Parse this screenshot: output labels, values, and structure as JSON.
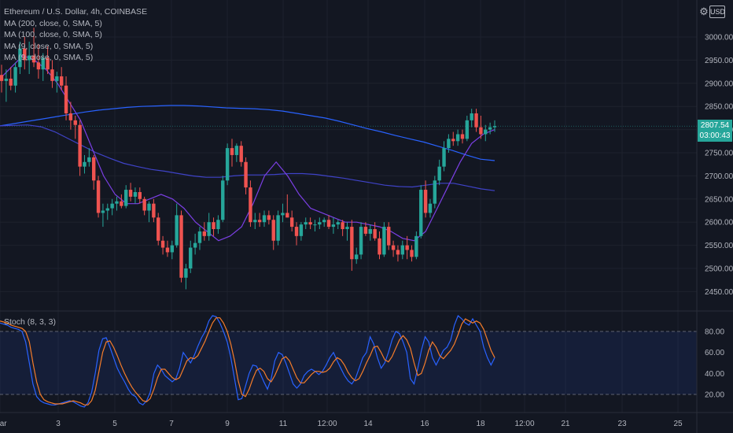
{
  "legend": {
    "title": "Ethereum / U.S. Dollar, 4h, COINBASE",
    "ma_lines": [
      "MA (200, close, 0, SMA, 5)",
      "MA (100, close, 0, SMA, 5)",
      "MA (9, close, 0, SMA, 5)",
      "MA (9, close, 0, SMA, 5)"
    ]
  },
  "currency": "USD",
  "settings_icon": "gear-icon",
  "price_badge": {
    "price": "2807.54",
    "countdown": "03:00:43"
  },
  "stoch_label": "Stoch (8, 3, 3)",
  "colors": {
    "up": "#26a69a",
    "down": "#ef5350",
    "ma200": "#2962ff",
    "ma100": "#3f43c8",
    "ma9": "#7b3fe4",
    "stoch_k": "#2962ff",
    "stoch_d": "#f57c2a"
  },
  "chart_data": [
    {
      "type": "candlestick",
      "title": "Ethereum / U.S. Dollar, 4h, COINBASE",
      "y_ticks": [
        2450,
        2500,
        2550,
        2600,
        2650,
        2700,
        2750,
        2800,
        2850,
        2900,
        2950,
        3000
      ],
      "ylim": [
        2420,
        3050
      ],
      "x_ticks": [
        "Mar",
        "3",
        "5",
        "7",
        "9",
        "11",
        "12:00",
        "14",
        "16",
        "18",
        "12:00",
        "21",
        "23",
        "25"
      ],
      "last_price": 2807.54,
      "candles": [
        {
          "o": 2918,
          "h": 2940,
          "l": 2880,
          "c": 2905
        },
        {
          "o": 2905,
          "h": 2930,
          "l": 2860,
          "c": 2910
        },
        {
          "o": 2910,
          "h": 2935,
          "l": 2885,
          "c": 2895
        },
        {
          "o": 2895,
          "h": 2945,
          "l": 2880,
          "c": 2935
        },
        {
          "o": 2935,
          "h": 2990,
          "l": 2920,
          "c": 2975
        },
        {
          "o": 2975,
          "h": 3000,
          "l": 2930,
          "c": 2950
        },
        {
          "o": 2950,
          "h": 2990,
          "l": 2920,
          "c": 2960
        },
        {
          "o": 2960,
          "h": 3020,
          "l": 2935,
          "c": 2945
        },
        {
          "o": 2945,
          "h": 2985,
          "l": 2910,
          "c": 2930
        },
        {
          "o": 2930,
          "h": 2965,
          "l": 2905,
          "c": 2955
        },
        {
          "o": 2955,
          "h": 2980,
          "l": 2920,
          "c": 2930
        },
        {
          "o": 2930,
          "h": 2950,
          "l": 2890,
          "c": 2905
        },
        {
          "o": 2905,
          "h": 2925,
          "l": 2880,
          "c": 2915
        },
        {
          "o": 2915,
          "h": 2935,
          "l": 2885,
          "c": 2895
        },
        {
          "o": 2895,
          "h": 2915,
          "l": 2820,
          "c": 2835
        },
        {
          "o": 2835,
          "h": 2860,
          "l": 2800,
          "c": 2820
        },
        {
          "o": 2820,
          "h": 2830,
          "l": 2780,
          "c": 2810
        },
        {
          "o": 2810,
          "h": 2820,
          "l": 2700,
          "c": 2720
        },
        {
          "o": 2720,
          "h": 2745,
          "l": 2705,
          "c": 2730
        },
        {
          "o": 2730,
          "h": 2760,
          "l": 2720,
          "c": 2740
        },
        {
          "o": 2740,
          "h": 2745,
          "l": 2670,
          "c": 2690
        },
        {
          "o": 2690,
          "h": 2700,
          "l": 2610,
          "c": 2620
        },
        {
          "o": 2620,
          "h": 2640,
          "l": 2590,
          "c": 2625
        },
        {
          "o": 2625,
          "h": 2640,
          "l": 2605,
          "c": 2630
        },
        {
          "o": 2630,
          "h": 2650,
          "l": 2615,
          "c": 2640
        },
        {
          "o": 2640,
          "h": 2655,
          "l": 2625,
          "c": 2645
        },
        {
          "o": 2645,
          "h": 2660,
          "l": 2630,
          "c": 2635
        },
        {
          "o": 2635,
          "h": 2680,
          "l": 2630,
          "c": 2670
        },
        {
          "o": 2670,
          "h": 2685,
          "l": 2645,
          "c": 2655
        },
        {
          "o": 2655,
          "h": 2675,
          "l": 2640,
          "c": 2665
        },
        {
          "o": 2665,
          "h": 2675,
          "l": 2640,
          "c": 2650
        },
        {
          "o": 2650,
          "h": 2655,
          "l": 2615,
          "c": 2625
        },
        {
          "o": 2625,
          "h": 2645,
          "l": 2600,
          "c": 2640
        },
        {
          "o": 2640,
          "h": 2650,
          "l": 2600,
          "c": 2610
        },
        {
          "o": 2610,
          "h": 2620,
          "l": 2550,
          "c": 2560
        },
        {
          "o": 2560,
          "h": 2570,
          "l": 2530,
          "c": 2545
        },
        {
          "o": 2545,
          "h": 2560,
          "l": 2525,
          "c": 2535
        },
        {
          "o": 2535,
          "h": 2560,
          "l": 2520,
          "c": 2550
        },
        {
          "o": 2550,
          "h": 2640,
          "l": 2545,
          "c": 2615
        },
        {
          "o": 2615,
          "h": 2625,
          "l": 2470,
          "c": 2480
        },
        {
          "o": 2480,
          "h": 2510,
          "l": 2455,
          "c": 2500
        },
        {
          "o": 2500,
          "h": 2560,
          "l": 2490,
          "c": 2545
        },
        {
          "o": 2545,
          "h": 2575,
          "l": 2530,
          "c": 2555
        },
        {
          "o": 2555,
          "h": 2590,
          "l": 2540,
          "c": 2580
        },
        {
          "o": 2580,
          "h": 2600,
          "l": 2560,
          "c": 2570
        },
        {
          "o": 2570,
          "h": 2620,
          "l": 2560,
          "c": 2600
        },
        {
          "o": 2600,
          "h": 2610,
          "l": 2570,
          "c": 2585
        },
        {
          "o": 2585,
          "h": 2615,
          "l": 2575,
          "c": 2605
        },
        {
          "o": 2605,
          "h": 2700,
          "l": 2600,
          "c": 2690
        },
        {
          "o": 2690,
          "h": 2770,
          "l": 2680,
          "c": 2760
        },
        {
          "o": 2760,
          "h": 2780,
          "l": 2720,
          "c": 2745
        },
        {
          "o": 2745,
          "h": 2770,
          "l": 2730,
          "c": 2765
        },
        {
          "o": 2765,
          "h": 2775,
          "l": 2720,
          "c": 2730
        },
        {
          "o": 2730,
          "h": 2740,
          "l": 2660,
          "c": 2675
        },
        {
          "o": 2675,
          "h": 2690,
          "l": 2590,
          "c": 2600
        },
        {
          "o": 2600,
          "h": 2620,
          "l": 2585,
          "c": 2605
        },
        {
          "o": 2605,
          "h": 2620,
          "l": 2590,
          "c": 2600
        },
        {
          "o": 2600,
          "h": 2625,
          "l": 2590,
          "c": 2615
        },
        {
          "o": 2615,
          "h": 2625,
          "l": 2595,
          "c": 2605
        },
        {
          "o": 2605,
          "h": 2615,
          "l": 2540,
          "c": 2560
        },
        {
          "o": 2560,
          "h": 2625,
          "l": 2550,
          "c": 2615
        },
        {
          "o": 2615,
          "h": 2640,
          "l": 2600,
          "c": 2620
        },
        {
          "o": 2620,
          "h": 2660,
          "l": 2610,
          "c": 2610
        },
        {
          "o": 2610,
          "h": 2625,
          "l": 2580,
          "c": 2590
        },
        {
          "o": 2590,
          "h": 2600,
          "l": 2550,
          "c": 2570
        },
        {
          "o": 2570,
          "h": 2600,
          "l": 2560,
          "c": 2595
        },
        {
          "o": 2595,
          "h": 2610,
          "l": 2585,
          "c": 2600
        },
        {
          "o": 2600,
          "h": 2610,
          "l": 2585,
          "c": 2595
        },
        {
          "o": 2595,
          "h": 2605,
          "l": 2580,
          "c": 2595
        },
        {
          "o": 2595,
          "h": 2610,
          "l": 2585,
          "c": 2600
        },
        {
          "o": 2600,
          "h": 2610,
          "l": 2590,
          "c": 2605
        },
        {
          "o": 2605,
          "h": 2615,
          "l": 2585,
          "c": 2590
        },
        {
          "o": 2590,
          "h": 2610,
          "l": 2575,
          "c": 2595
        },
        {
          "o": 2595,
          "h": 2605,
          "l": 2585,
          "c": 2600
        },
        {
          "o": 2600,
          "h": 2605,
          "l": 2570,
          "c": 2585
        },
        {
          "o": 2585,
          "h": 2600,
          "l": 2560,
          "c": 2590
        },
        {
          "o": 2590,
          "h": 2605,
          "l": 2495,
          "c": 2520
        },
        {
          "o": 2520,
          "h": 2545,
          "l": 2510,
          "c": 2530
        },
        {
          "o": 2530,
          "h": 2600,
          "l": 2520,
          "c": 2590
        },
        {
          "o": 2590,
          "h": 2600,
          "l": 2570,
          "c": 2575
        },
        {
          "o": 2575,
          "h": 2595,
          "l": 2560,
          "c": 2585
        },
        {
          "o": 2585,
          "h": 2600,
          "l": 2560,
          "c": 2565
        },
        {
          "o": 2565,
          "h": 2580,
          "l": 2520,
          "c": 2530
        },
        {
          "o": 2530,
          "h": 2600,
          "l": 2525,
          "c": 2590
        },
        {
          "o": 2590,
          "h": 2600,
          "l": 2540,
          "c": 2550
        },
        {
          "o": 2550,
          "h": 2560,
          "l": 2525,
          "c": 2540
        },
        {
          "o": 2540,
          "h": 2550,
          "l": 2515,
          "c": 2530
        },
        {
          "o": 2530,
          "h": 2560,
          "l": 2520,
          "c": 2550
        },
        {
          "o": 2550,
          "h": 2570,
          "l": 2520,
          "c": 2540
        },
        {
          "o": 2540,
          "h": 2550,
          "l": 2515,
          "c": 2525
        },
        {
          "o": 2525,
          "h": 2580,
          "l": 2520,
          "c": 2570
        },
        {
          "o": 2570,
          "h": 2680,
          "l": 2565,
          "c": 2670
        },
        {
          "o": 2670,
          "h": 2690,
          "l": 2610,
          "c": 2620
        },
        {
          "o": 2620,
          "h": 2650,
          "l": 2610,
          "c": 2640
        },
        {
          "o": 2640,
          "h": 2700,
          "l": 2630,
          "c": 2690
        },
        {
          "o": 2690,
          "h": 2735,
          "l": 2680,
          "c": 2720
        },
        {
          "o": 2720,
          "h": 2775,
          "l": 2710,
          "c": 2760
        },
        {
          "o": 2760,
          "h": 2790,
          "l": 2750,
          "c": 2780
        },
        {
          "o": 2780,
          "h": 2795,
          "l": 2765,
          "c": 2775
        },
        {
          "o": 2775,
          "h": 2800,
          "l": 2765,
          "c": 2790
        },
        {
          "o": 2790,
          "h": 2800,
          "l": 2770,
          "c": 2780
        },
        {
          "o": 2780,
          "h": 2830,
          "l": 2775,
          "c": 2820
        },
        {
          "o": 2820,
          "h": 2845,
          "l": 2805,
          "c": 2835
        },
        {
          "o": 2835,
          "h": 2845,
          "l": 2795,
          "c": 2805
        },
        {
          "o": 2805,
          "h": 2830,
          "l": 2780,
          "c": 2790
        },
        {
          "o": 2790,
          "h": 2810,
          "l": 2775,
          "c": 2800
        },
        {
          "o": 2800,
          "h": 2815,
          "l": 2790,
          "c": 2805
        },
        {
          "o": 2805,
          "h": 2820,
          "l": 2795,
          "c": 2807.54
        }
      ],
      "ma200": [
        2808,
        2813,
        2818,
        2823,
        2828,
        2833,
        2838,
        2842,
        2845,
        2848,
        2850,
        2851,
        2852,
        2852,
        2851,
        2849,
        2847,
        2846,
        2845,
        2843,
        2840,
        2835,
        2830,
        2825,
        2818,
        2810,
        2802,
        2795,
        2787,
        2780,
        2773,
        2764,
        2755,
        2745,
        2736,
        2733
      ],
      "ma100": [
        2808,
        2809,
        2810,
        2806,
        2795,
        2780,
        2765,
        2750,
        2738,
        2727,
        2720,
        2714,
        2710,
        2705,
        2700,
        2697,
        2697,
        2700,
        2702,
        2702,
        2703,
        2705,
        2705,
        2703,
        2699,
        2695,
        2690,
        2685,
        2680,
        2677,
        2676,
        2680,
        2684,
        2684,
        2678,
        2672,
        2668
      ],
      "ma9": [
        2910,
        2935,
        2960,
        2950,
        2930,
        2900,
        2860,
        2820,
        2760,
        2700,
        2660,
        2640,
        2640,
        2650,
        2660,
        2650,
        2630,
        2600,
        2580,
        2560,
        2570,
        2590,
        2640,
        2700,
        2730,
        2700,
        2660,
        2630,
        2620,
        2610,
        2600,
        2600,
        2595,
        2590,
        2580,
        2565,
        2560,
        2580,
        2630,
        2680,
        2730,
        2770,
        2790,
        2800
      ]
    },
    {
      "type": "line",
      "title": "Stoch (8, 3, 3)",
      "y_ticks": [
        20,
        40,
        60,
        80
      ],
      "ylim": [
        0,
        100
      ],
      "bands": [
        20,
        80
      ],
      "series": [
        {
          "name": "%K",
          "values": [
            88,
            87,
            86,
            84,
            83,
            82,
            80,
            70,
            50,
            30,
            18,
            14,
            12,
            11,
            10,
            10,
            11,
            12,
            13,
            14,
            13,
            11,
            9,
            8,
            12,
            22,
            40,
            62,
            73,
            74,
            65,
            55,
            45,
            38,
            32,
            25,
            20,
            18,
            12,
            10,
            14,
            22,
            40,
            48,
            44,
            38,
            35,
            32,
            35,
            45,
            60,
            55,
            50,
            57,
            66,
            74,
            80,
            90,
            95,
            94,
            88,
            80,
            70,
            55,
            35,
            15,
            16,
            28,
            40,
            48,
            47,
            40,
            32,
            25,
            35,
            52,
            60,
            58,
            50,
            40,
            30,
            26,
            30,
            38,
            42,
            44,
            42,
            39,
            42,
            48,
            55,
            60,
            52,
            45,
            38,
            33,
            30,
            35,
            45,
            55,
            60,
            75,
            68,
            55,
            45,
            50,
            60,
            72,
            80,
            78,
            70,
            60,
            35,
            30,
            45,
            62,
            75,
            70,
            55,
            48,
            55,
            62,
            65,
            72,
            86,
            95,
            92,
            88,
            86,
            92,
            86,
            80,
            65,
            55,
            48,
            55
          ]
        },
        {
          "name": "%D",
          "values": [
            90,
            89,
            88,
            86,
            85,
            84,
            83,
            80,
            70,
            50,
            32,
            20,
            15,
            13,
            12,
            11,
            11,
            11,
            12,
            13,
            14,
            13,
            12,
            10,
            10,
            14,
            24,
            42,
            60,
            70,
            71,
            65,
            57,
            48,
            40,
            33,
            27,
            22,
            18,
            14,
            13,
            16,
            25,
            36,
            44,
            44,
            40,
            36,
            34,
            36,
            44,
            52,
            55,
            54,
            57,
            64,
            71,
            80,
            88,
            93,
            93,
            88,
            80,
            68,
            52,
            33,
            20,
            18,
            25,
            35,
            43,
            45,
            42,
            35,
            32,
            38,
            46,
            54,
            56,
            52,
            44,
            36,
            31,
            31,
            35,
            39,
            42,
            42,
            41,
            42,
            45,
            51,
            55,
            53,
            48,
            41,
            36,
            33,
            35,
            42,
            50,
            57,
            65,
            66,
            60,
            53,
            51,
            56,
            64,
            72,
            76,
            72,
            64,
            50,
            38,
            40,
            50,
            62,
            70,
            65,
            57,
            54,
            58,
            62,
            68,
            77,
            87,
            92,
            90,
            88,
            90,
            88,
            82,
            72,
            62,
            55
          ]
        }
      ]
    }
  ]
}
